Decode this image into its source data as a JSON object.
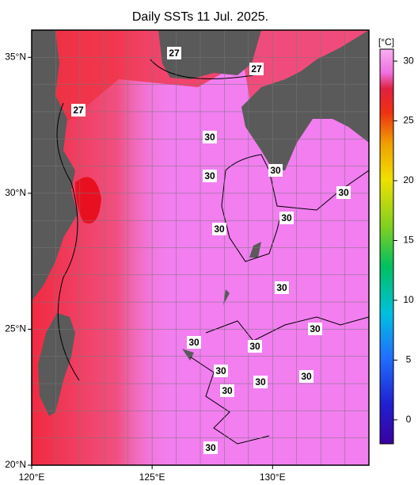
{
  "title": "Daily SSTs 11 Jul. 2025.",
  "map": {
    "xlim": [
      120,
      134
    ],
    "ylim": [
      20,
      36
    ],
    "xticks": [
      {
        "value": 120,
        "label": "120°E"
      },
      {
        "value": 125,
        "label": "125°E"
      },
      {
        "value": 130,
        "label": "130°E"
      }
    ],
    "yticks": [
      {
        "value": 20,
        "label": "20°N"
      },
      {
        "value": 25,
        "label": "25°N"
      },
      {
        "value": 30,
        "label": "30°N"
      },
      {
        "value": 35,
        "label": "35°N"
      }
    ],
    "contour_labels": [
      27,
      27,
      27,
      30,
      30,
      30,
      30,
      30,
      30,
      30,
      30,
      30,
      30,
      30,
      30,
      30,
      30,
      30
    ]
  },
  "colorbar": {
    "unit": "[°C]",
    "lim": [
      -2,
      31
    ],
    "ticks": [
      0,
      5,
      10,
      15,
      20,
      25,
      30
    ]
  }
}
